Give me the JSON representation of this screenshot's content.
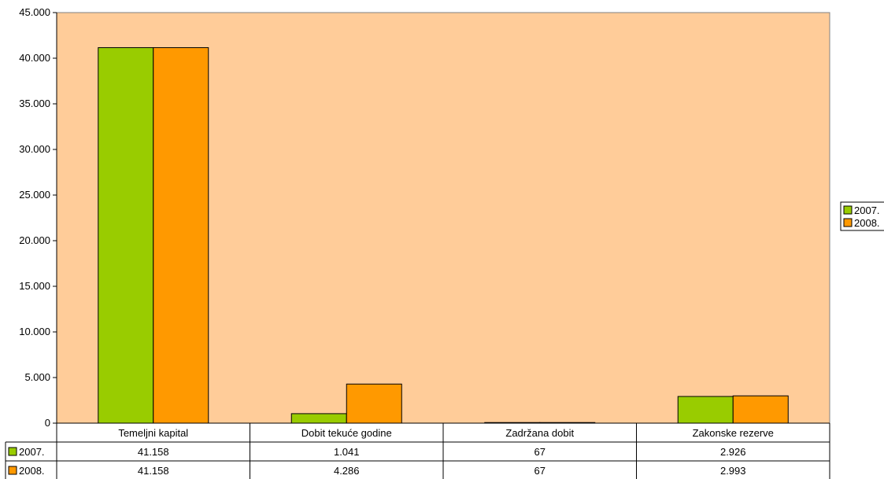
{
  "chart_data": {
    "type": "bar",
    "categories": [
      "Temeljni kapital",
      "Dobit tekuće godine",
      "Zadržana dobit",
      "Zakonske rezerve"
    ],
    "series": [
      {
        "name": "2007.",
        "values": [
          41158,
          1041,
          67,
          2926
        ],
        "labels": [
          "41.158",
          "1.041",
          "67",
          "2.926"
        ],
        "color": "#99cc00"
      },
      {
        "name": "2008.",
        "values": [
          41158,
          4286,
          67,
          2993
        ],
        "labels": [
          "41.158",
          "4.286",
          "67",
          "2.993"
        ],
        "color": "#ff9900"
      }
    ],
    "y_ticks": [
      {
        "value": 0,
        "label": "0"
      },
      {
        "value": 5000,
        "label": "5.000"
      },
      {
        "value": 10000,
        "label": "10.000"
      },
      {
        "value": 15000,
        "label": "15.000"
      },
      {
        "value": 20000,
        "label": "20.000"
      },
      {
        "value": 25000,
        "label": "25.000"
      },
      {
        "value": 30000,
        "label": "30.000"
      },
      {
        "value": 35000,
        "label": "35.000"
      },
      {
        "value": 40000,
        "label": "40.000"
      },
      {
        "value": 45000,
        "label": "45.000"
      }
    ],
    "ylim": [
      0,
      45000
    ],
    "title": "",
    "xlabel": "",
    "ylabel": "",
    "grid": false,
    "legend_position": "right",
    "plot_background": "#ffcc99",
    "has_data_table": true
  }
}
